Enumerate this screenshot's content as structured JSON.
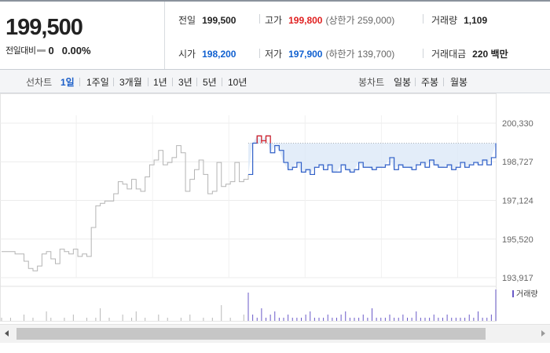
{
  "header": {
    "price": "199,500",
    "change_label": "전일대비",
    "change_icon": "flat-dash-icon",
    "change_value": "0",
    "change_pct": "0.00%"
  },
  "stats": {
    "prev_close": {
      "label": "전일",
      "value": "199,500"
    },
    "high": {
      "label": "고가",
      "value": "199,800",
      "sub": "(상한가 259,000)"
    },
    "volume": {
      "label": "거래량",
      "value": "1,109"
    },
    "open": {
      "label": "시가",
      "value": "198,200"
    },
    "low": {
      "label": "저가",
      "value": "197,900",
      "sub": "(하한가 139,700)"
    },
    "trade_value": {
      "label": "거래대금",
      "value": "220 백만"
    }
  },
  "periods": {
    "line_label": "선차트",
    "line": [
      "1일",
      "1주일",
      "3개월",
      "1년",
      "3년",
      "5년",
      "10년"
    ],
    "active": "1일",
    "candle_label": "봉차트",
    "candle": [
      "일봉",
      "주봉",
      "월봉"
    ]
  },
  "chart_data": {
    "type": "line",
    "y_ticks": [
      "200,330",
      "198,727",
      "197,124",
      "195,520",
      "193,917"
    ],
    "y_tick_values": [
      200330,
      198727,
      197124,
      195520,
      193917
    ],
    "ylim": [
      193917,
      200330
    ],
    "reference_price": 199500,
    "series": [
      {
        "name": "prev",
        "color": "#b4b4b4",
        "values": [
          195000,
          195000,
          195000,
          194900,
          194900,
          194600,
          194300,
          194200,
          194400,
          194900,
          195000,
          194700,
          194500,
          195100,
          195000,
          194900,
          195100,
          194800,
          194900,
          194800,
          196000,
          196900,
          197000,
          197100,
          197100,
          197400,
          197900,
          197800,
          197600,
          198000,
          197600,
          197500,
          198100,
          198600,
          198800,
          199200,
          198600,
          198700,
          198900,
          199400,
          199100,
          197500,
          198000,
          198400,
          198800,
          198200,
          197400,
          197500,
          198700,
          197700,
          197800,
          197900,
          198700,
          197900,
          198000,
          198200
        ]
      },
      {
        "name": "today",
        "color": "#2f5fc8",
        "values": [
          198200,
          199500,
          199800,
          199600,
          199800,
          199100,
          199400,
          199200,
          198700,
          198400,
          198500,
          198700,
          198300,
          198400,
          198200,
          198500,
          198600,
          198400,
          198600,
          198300,
          198300,
          198600,
          198400,
          198300,
          198400,
          198700,
          198500,
          198500,
          198400,
          198500,
          198500,
          198600,
          198900,
          198400,
          198600,
          198500,
          198500,
          198400,
          198600,
          198700,
          198500,
          198800,
          198600,
          198500,
          198500,
          198600,
          198400,
          198500,
          198700,
          198500,
          198600,
          198700,
          198600,
          198800,
          198600,
          198900,
          199500
        ]
      }
    ],
    "volume_label": "거래량",
    "volume_prev": [
      1,
      0,
      1,
      0,
      0,
      2,
      0,
      1,
      0,
      0,
      3,
      1,
      0,
      0,
      1,
      0,
      2,
      0,
      0,
      1,
      0,
      1,
      4,
      0,
      1,
      0,
      0,
      2,
      0,
      1,
      3,
      0,
      1,
      0,
      0,
      2,
      0,
      1,
      0,
      0,
      1,
      0,
      2,
      0,
      0,
      1,
      0,
      1,
      0,
      5,
      0,
      1,
      0,
      0,
      2,
      1
    ],
    "volume_today": [
      9,
      2,
      1,
      4,
      1,
      2,
      3,
      1,
      1,
      2,
      1,
      1,
      1,
      2,
      3,
      1,
      1,
      1,
      2,
      1,
      1,
      2,
      3,
      1,
      1,
      1,
      2,
      1,
      4,
      1,
      1,
      1,
      2,
      1,
      1,
      2,
      1,
      1,
      3,
      1,
      1,
      1,
      2,
      1,
      1,
      2,
      1,
      1,
      1,
      1,
      2,
      1,
      3,
      1,
      1,
      2,
      10
    ]
  },
  "colors": {
    "up": "#e02020",
    "down": "#1060d0",
    "line_today": "#2f5fc8",
    "line_prev": "#b4b4b4",
    "fill": "#dce8f8"
  },
  "scrollbar": {
    "left_icon": "triangle-left-icon",
    "right_icon": "triangle-right-icon"
  }
}
